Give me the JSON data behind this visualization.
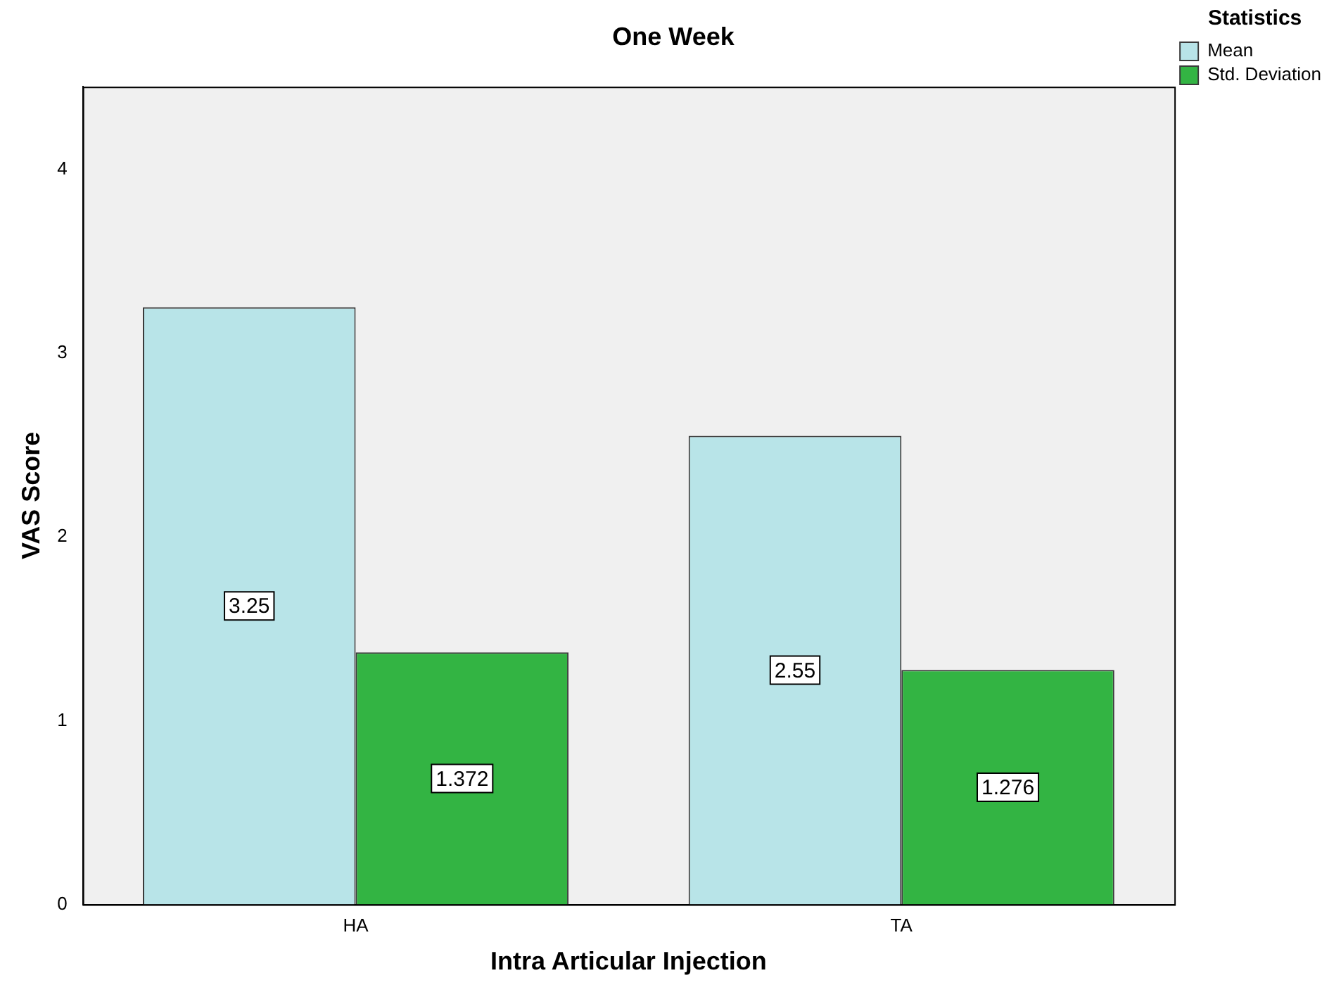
{
  "chart_data": {
    "type": "bar",
    "title": "One Week",
    "xlabel": "Intra Articular Injection",
    "ylabel": "VAS Score",
    "legend_title": "Statistics",
    "categories": [
      "HA",
      "TA"
    ],
    "series": [
      {
        "name": "Mean",
        "color": "#b8e4e8",
        "values": [
          3.25,
          2.55
        ]
      },
      {
        "name": "Std. Deviation",
        "color": "#33b443",
        "values": [
          1.372,
          1.276
        ]
      }
    ],
    "ylim": [
      0,
      4.45
    ],
    "yticks": [
      0,
      1,
      2,
      3,
      4
    ],
    "grid": false,
    "legend": "top right",
    "data_labels": true
  }
}
